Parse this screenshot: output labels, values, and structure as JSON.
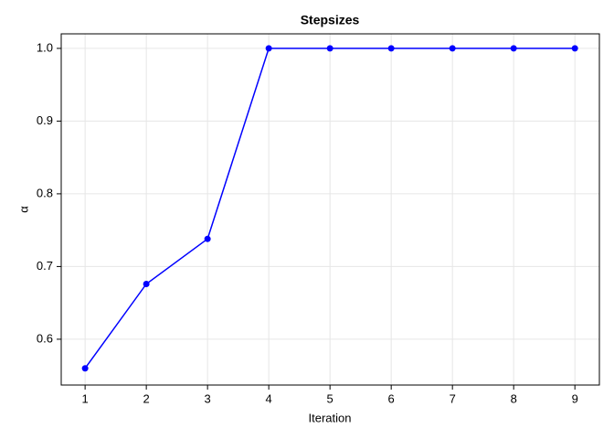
{
  "chart_data": {
    "type": "line",
    "title": "Stepsizes",
    "x_label": "Iteration",
    "y_label": "α",
    "x": [
      1,
      2,
      3,
      4,
      5,
      6,
      7,
      8,
      9
    ],
    "series": [
      {
        "color": "#0000ff",
        "values": [
          0.56,
          0.676,
          0.738,
          1.0,
          1.0,
          1.0,
          1.0,
          1.0,
          1.0
        ]
      }
    ],
    "xlim": [
      0.61,
      9.4
    ],
    "ylim": [
      0.537,
      1.02
    ],
    "xticks": [
      1,
      2,
      3,
      4,
      5,
      6,
      7,
      8,
      9
    ],
    "yticks": [
      0.6,
      0.7,
      0.8,
      0.9,
      {
        "value": 1,
        "label": "1.0"
      }
    ],
    "grid": true,
    "markers": true
  }
}
